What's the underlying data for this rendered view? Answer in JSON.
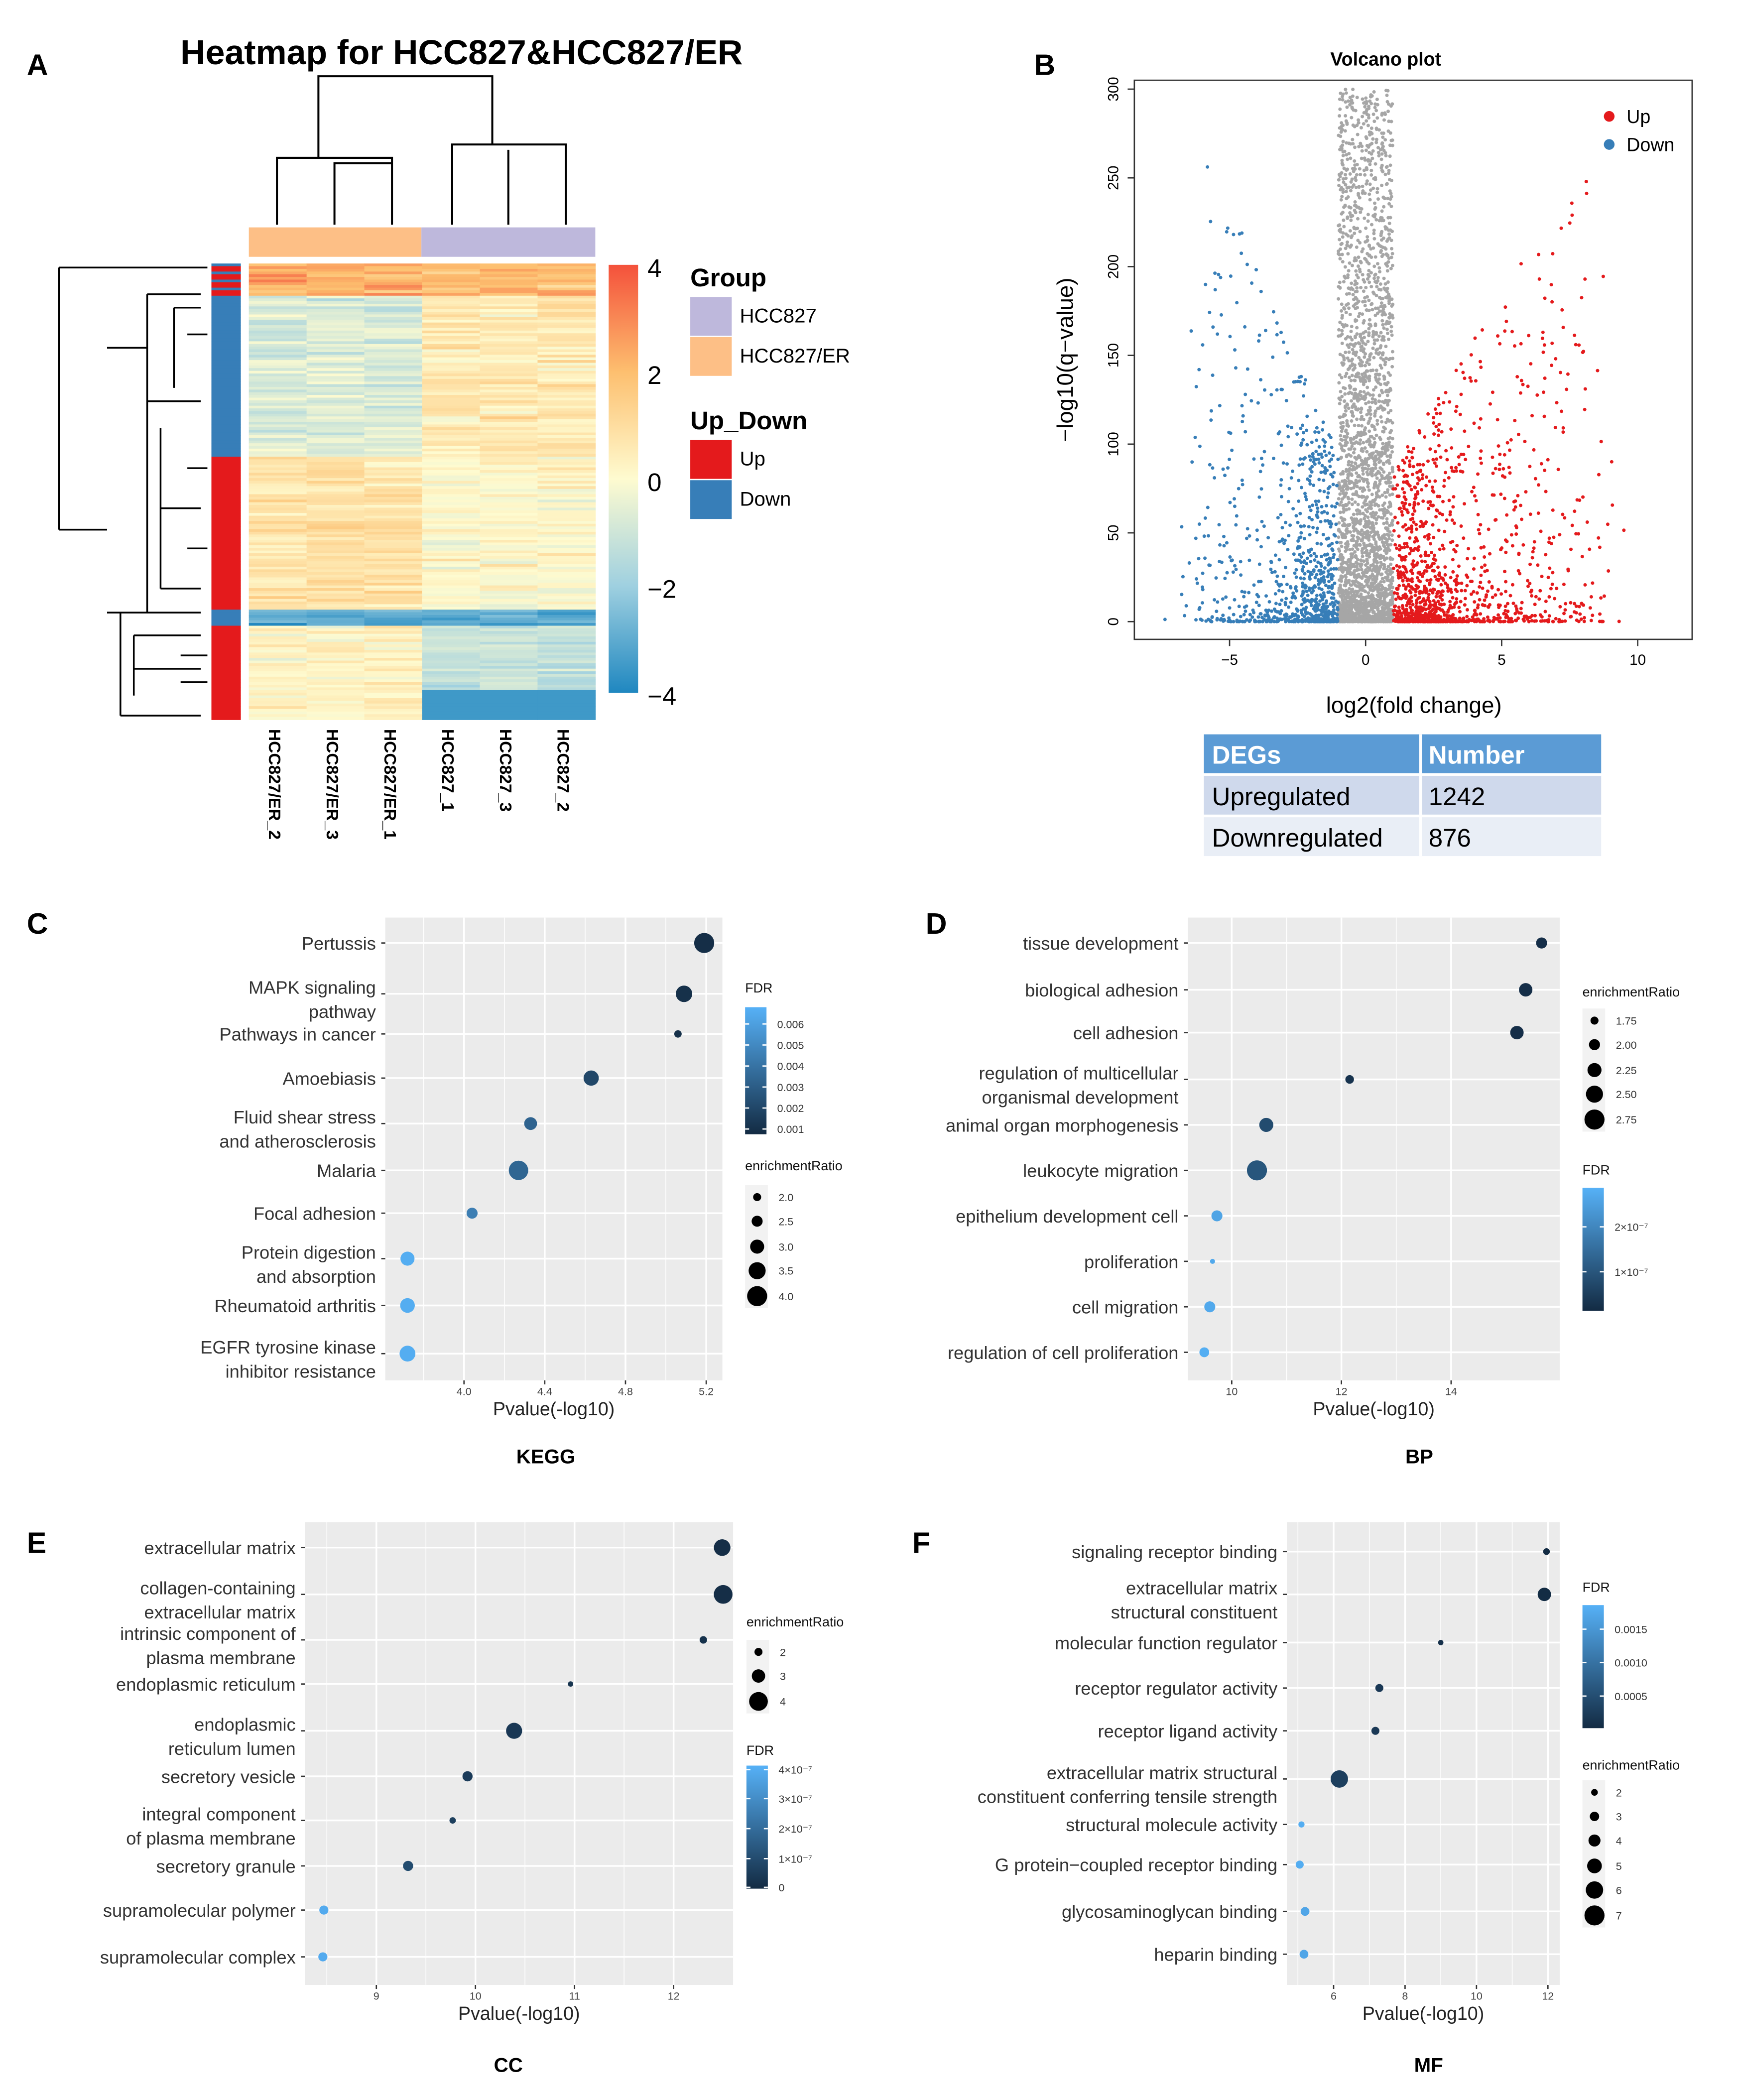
{
  "panels": {
    "A": "A",
    "B": "B",
    "C": "C",
    "D": "D",
    "E": "E",
    "F": "F"
  },
  "colors": {
    "up": "#E41A1C",
    "down": "#377EB8",
    "grey": "#A6A6A6",
    "hcc827": "#BEB8DC",
    "hcc827er": "#FDBF86",
    "fdr_low": "#132B43",
    "fdr_high": "#56B1F7",
    "panel_bg": "#EBEBEB"
  },
  "chart_data": [
    {
      "type": "heatmap",
      "title": "Heatmap for HCC827&HCC827/ER",
      "columns": [
        "HCC827/ER_2",
        "HCC827/ER_3",
        "HCC827/ER_1",
        "HCC827_1",
        "HCC827_3",
        "HCC827_2"
      ],
      "column_groups": [
        "HCC827/ER",
        "HCC827/ER",
        "HCC827/ER",
        "HCC827",
        "HCC827",
        "HCC827"
      ],
      "scale": {
        "min": -4,
        "max": 4,
        "ticks": [
          "4",
          "2",
          "0",
          "−2",
          "−4"
        ]
      },
      "legend": {
        "group_title": "Group",
        "groups": [
          "HCC827",
          "HCC827/ER"
        ],
        "updown_title": "Up_Down",
        "updown": [
          "Up",
          "Down"
        ]
      }
    },
    {
      "type": "scatter",
      "title": "Volcano plot",
      "xlabel": "log2(fold change)",
      "ylabel": "−log10(q−value)",
      "xlim": [
        -8.5,
        12
      ],
      "ylim": [
        -10,
        305
      ],
      "xticks": [
        "−5",
        "0",
        "5",
        "10"
      ],
      "xtick_values": [
        -5,
        0,
        5,
        10
      ],
      "yticks": [
        "0",
        "50",
        "100",
        "150",
        "200",
        "250",
        "300"
      ],
      "ytick_values": [
        0,
        50,
        100,
        150,
        200,
        250,
        300
      ],
      "legend": [
        "Up",
        "Down"
      ],
      "legend_position": "top-right"
    },
    {
      "type": "table",
      "headers": [
        "DEGs",
        "Number"
      ],
      "rows": [
        [
          "Upregulated",
          "1242"
        ],
        [
          "Downregulated",
          "876"
        ]
      ]
    },
    {
      "type": "scatter",
      "subtitle": "KEGG",
      "xlabel": "Pvalue(-log10)",
      "xlim": [
        3.61,
        5.28
      ],
      "xticks": [
        "4.0",
        "4.4",
        "4.8",
        "5.2"
      ],
      "xtick_values": [
        4.0,
        4.4,
        4.8,
        5.2
      ],
      "fdr": {
        "title": "FDR",
        "lim": [
          0.00075,
          0.0068
        ],
        "ticks": [
          "0.006",
          "0.005",
          "0.004",
          "0.003",
          "0.002",
          "0.001"
        ],
        "tick_values": [
          0.006,
          0.005,
          0.004,
          0.003,
          0.002,
          0.001
        ]
      },
      "size": {
        "title": "enrichmentRatio",
        "labels": [
          "2.0",
          "2.5",
          "3.0",
          "3.5",
          "4.0"
        ],
        "values": [
          2,
          2.5,
          3,
          3.5,
          4
        ]
      },
      "items": [
        {
          "lines": [
            "Pertussis"
          ],
          "pvalue": 5.19,
          "ratio": 4.0,
          "fdr": 0.0009
        },
        {
          "lines": [
            "MAPK signaling",
            "pathway"
          ],
          "pvalue": 5.09,
          "ratio": 3.4,
          "fdr": 0.001
        },
        {
          "lines": [
            "Pathways in cancer"
          ],
          "pvalue": 5.06,
          "ratio": 1.9,
          "fdr": 0.001
        },
        {
          "lines": [
            "Amoebiasis"
          ],
          "pvalue": 4.63,
          "ratio": 3.2,
          "fdr": 0.002
        },
        {
          "lines": [
            "Fluid shear stress",
            "and atherosclerosis"
          ],
          "pvalue": 4.33,
          "ratio": 2.8,
          "fdr": 0.0033
        },
        {
          "lines": [
            "Malaria"
          ],
          "pvalue": 4.27,
          "ratio": 3.9,
          "fdr": 0.0034
        },
        {
          "lines": [
            "Focal adhesion"
          ],
          "pvalue": 4.04,
          "ratio": 2.5,
          "fdr": 0.0045
        },
        {
          "lines": [
            "Protein digestion",
            "and absorption"
          ],
          "pvalue": 3.72,
          "ratio": 3.0,
          "fdr": 0.0066
        },
        {
          "lines": [
            "Rheumatoid arthritis"
          ],
          "pvalue": 3.72,
          "ratio": 3.1,
          "fdr": 0.0066
        },
        {
          "lines": [
            "EGFR tyrosine kinase",
            "inhibitor resistance"
          ],
          "pvalue": 3.72,
          "ratio": 3.3,
          "fdr": 0.0066
        }
      ]
    },
    {
      "type": "scatter",
      "subtitle": "BP",
      "xlabel": "Pvalue(-log10)",
      "xlim": [
        9.2,
        15.98
      ],
      "xticks": [
        "10",
        "12",
        "14"
      ],
      "xtick_values": [
        10,
        12,
        14
      ],
      "fdr": {
        "title": "FDR",
        "lim": [
          1.3e-08,
          2.87e-07
        ],
        "ticks": [
          "2×10⁻⁷",
          "1×10⁻⁷"
        ],
        "tick_values": [
          2e-07,
          1e-07
        ]
      },
      "size": {
        "title": "enrichmentRatio",
        "labels": [
          "1.75",
          "2.00",
          "2.25",
          "2.50",
          "2.75"
        ],
        "values": [
          1.75,
          2,
          2.25,
          2.5,
          2.75
        ]
      },
      "items": [
        {
          "lines": [
            "tissue development"
          ],
          "pvalue": 15.65,
          "ratio": 2.0,
          "fdr": 2e-08
        },
        {
          "lines": [
            "biological adhesion"
          ],
          "pvalue": 15.36,
          "ratio": 2.2,
          "fdr": 2e-08
        },
        {
          "lines": [
            "cell adhesion"
          ],
          "pvalue": 15.2,
          "ratio": 2.2,
          "fdr": 2e-08
        },
        {
          "lines": [
            "regulation of multicellular",
            "organismal development"
          ],
          "pvalue": 12.15,
          "ratio": 1.8,
          "fdr": 3e-08
        },
        {
          "lines": [
            "animal organ morphogenesis"
          ],
          "pvalue": 10.63,
          "ratio": 2.25,
          "fdr": 8e-08
        },
        {
          "lines": [
            "leukocyte migration"
          ],
          "pvalue": 10.46,
          "ratio": 2.75,
          "fdr": 1e-07
        },
        {
          "lines": [
            "epithelium development cell"
          ],
          "pvalue": 9.73,
          "ratio": 2.0,
          "fdr": 2.6e-07
        },
        {
          "lines": [
            "proliferation"
          ],
          "pvalue": 9.65,
          "ratio": 1.5,
          "fdr": 2.7e-07
        },
        {
          "lines": [
            "cell migration"
          ],
          "pvalue": 9.6,
          "ratio": 2.0,
          "fdr": 2.7e-07
        },
        {
          "lines": [
            "regulation of cell proliferation"
          ],
          "pvalue": 9.5,
          "ratio": 1.9,
          "fdr": 2.8e-07
        }
      ]
    },
    {
      "type": "scatter",
      "subtitle": "CC",
      "xlabel": "Pvalue(-log10)",
      "xlim": [
        8.28,
        12.6
      ],
      "xticks": [
        "9",
        "10",
        "11",
        "12"
      ],
      "xtick_values": [
        9,
        10,
        11,
        12
      ],
      "fdr": {
        "title": "FDR",
        "lim": [
          0,
          4.1e-07
        ],
        "ticks": [
          "4×10⁻⁷",
          "3×10⁻⁷",
          "2×10⁻⁷",
          "1×10⁻⁷",
          "0"
        ],
        "tick_values": [
          4e-07,
          3e-07,
          2e-07,
          1e-07,
          0
        ]
      },
      "size": {
        "title": "enrichmentRatio",
        "labels": [
          "2",
          "3",
          "4"
        ],
        "values": [
          2,
          3,
          4
        ]
      },
      "items": [
        {
          "lines": [
            "extracellular matrix"
          ],
          "pvalue": 12.49,
          "ratio": 3.6,
          "fdr": 1e-08
        },
        {
          "lines": [
            "collagen-containing",
            "extracellular matrix"
          ],
          "pvalue": 12.5,
          "ratio": 4.0,
          "fdr": 1e-08
        },
        {
          "lines": [
            "intrinsic component of",
            "plasma membrane"
          ],
          "pvalue": 12.3,
          "ratio": 1.9,
          "fdr": 2e-08
        },
        {
          "lines": [
            "endoplasmic reticulum"
          ],
          "pvalue": 10.96,
          "ratio": 1.5,
          "fdr": 3e-08
        },
        {
          "lines": [
            "endoplasmic",
            "reticulum lumen"
          ],
          "pvalue": 10.39,
          "ratio": 3.5,
          "fdr": 4e-08
        },
        {
          "lines": [
            "secretory vesicle"
          ],
          "pvalue": 9.92,
          "ratio": 2.4,
          "fdr": 5e-08
        },
        {
          "lines": [
            "integral component",
            "of plasma membrane"
          ],
          "pvalue": 9.77,
          "ratio": 1.7,
          "fdr": 6e-08
        },
        {
          "lines": [
            "secretory granule"
          ],
          "pvalue": 9.32,
          "ratio": 2.4,
          "fdr": 1e-07
        },
        {
          "lines": [
            "supramolecular polymer"
          ],
          "pvalue": 8.47,
          "ratio": 2.2,
          "fdr": 3.9e-07
        },
        {
          "lines": [
            "supramolecular complex"
          ],
          "pvalue": 8.46,
          "ratio": 2.2,
          "fdr": 3.9e-07
        }
      ]
    },
    {
      "type": "scatter",
      "subtitle": "MF",
      "xlabel": "Pvalue(-log10)",
      "xlim": [
        4.69,
        12.33
      ],
      "xticks": [
        "6",
        "8",
        "10",
        "12"
      ],
      "xtick_values": [
        6,
        8,
        10,
        12
      ],
      "fdr": {
        "title": "FDR",
        "lim": [
          2e-05,
          0.00186
        ],
        "ticks": [
          "0.0015",
          "0.0010",
          "0.0005"
        ],
        "tick_values": [
          0.0015,
          0.001,
          0.0005
        ]
      },
      "size": {
        "title": "enrichmentRatio",
        "labels": [
          "2",
          "3",
          "4",
          "5",
          "6",
          "7"
        ],
        "values": [
          2,
          3,
          4,
          5,
          6,
          7
        ]
      },
      "items": [
        {
          "lines": [
            "signaling receptor binding"
          ],
          "pvalue": 11.96,
          "ratio": 2.0,
          "fdr": 3e-05
        },
        {
          "lines": [
            "extracellular matrix",
            "structural constituent"
          ],
          "pvalue": 11.9,
          "ratio": 4.5,
          "fdr": 3e-05
        },
        {
          "lines": [
            "molecular function regulator"
          ],
          "pvalue": 9.0,
          "ratio": 1.5,
          "fdr": 0.0001
        },
        {
          "lines": [
            "receptor regulator activity"
          ],
          "pvalue": 7.28,
          "ratio": 2.5,
          "fdr": 0.0002
        },
        {
          "lines": [
            "receptor ligand activity"
          ],
          "pvalue": 7.17,
          "ratio": 2.5,
          "fdr": 0.0002
        },
        {
          "lines": [
            "extracellular matrix structural",
            "constituent conferring tensile strength"
          ],
          "pvalue": 6.16,
          "ratio": 6.0,
          "fdr": 0.0003
        },
        {
          "lines": [
            "structural molecule activity"
          ],
          "pvalue": 5.1,
          "ratio": 1.8,
          "fdr": 0.0018
        },
        {
          "lines": [
            "G protein−coupled receptor binding"
          ],
          "pvalue": 5.05,
          "ratio": 2.5,
          "fdr": 0.0018
        },
        {
          "lines": [
            "glycosaminoglycan binding"
          ],
          "pvalue": 5.2,
          "ratio": 2.8,
          "fdr": 0.0017
        },
        {
          "lines": [
            "heparin binding"
          ],
          "pvalue": 5.17,
          "ratio": 2.8,
          "fdr": 0.0017
        }
      ]
    }
  ]
}
